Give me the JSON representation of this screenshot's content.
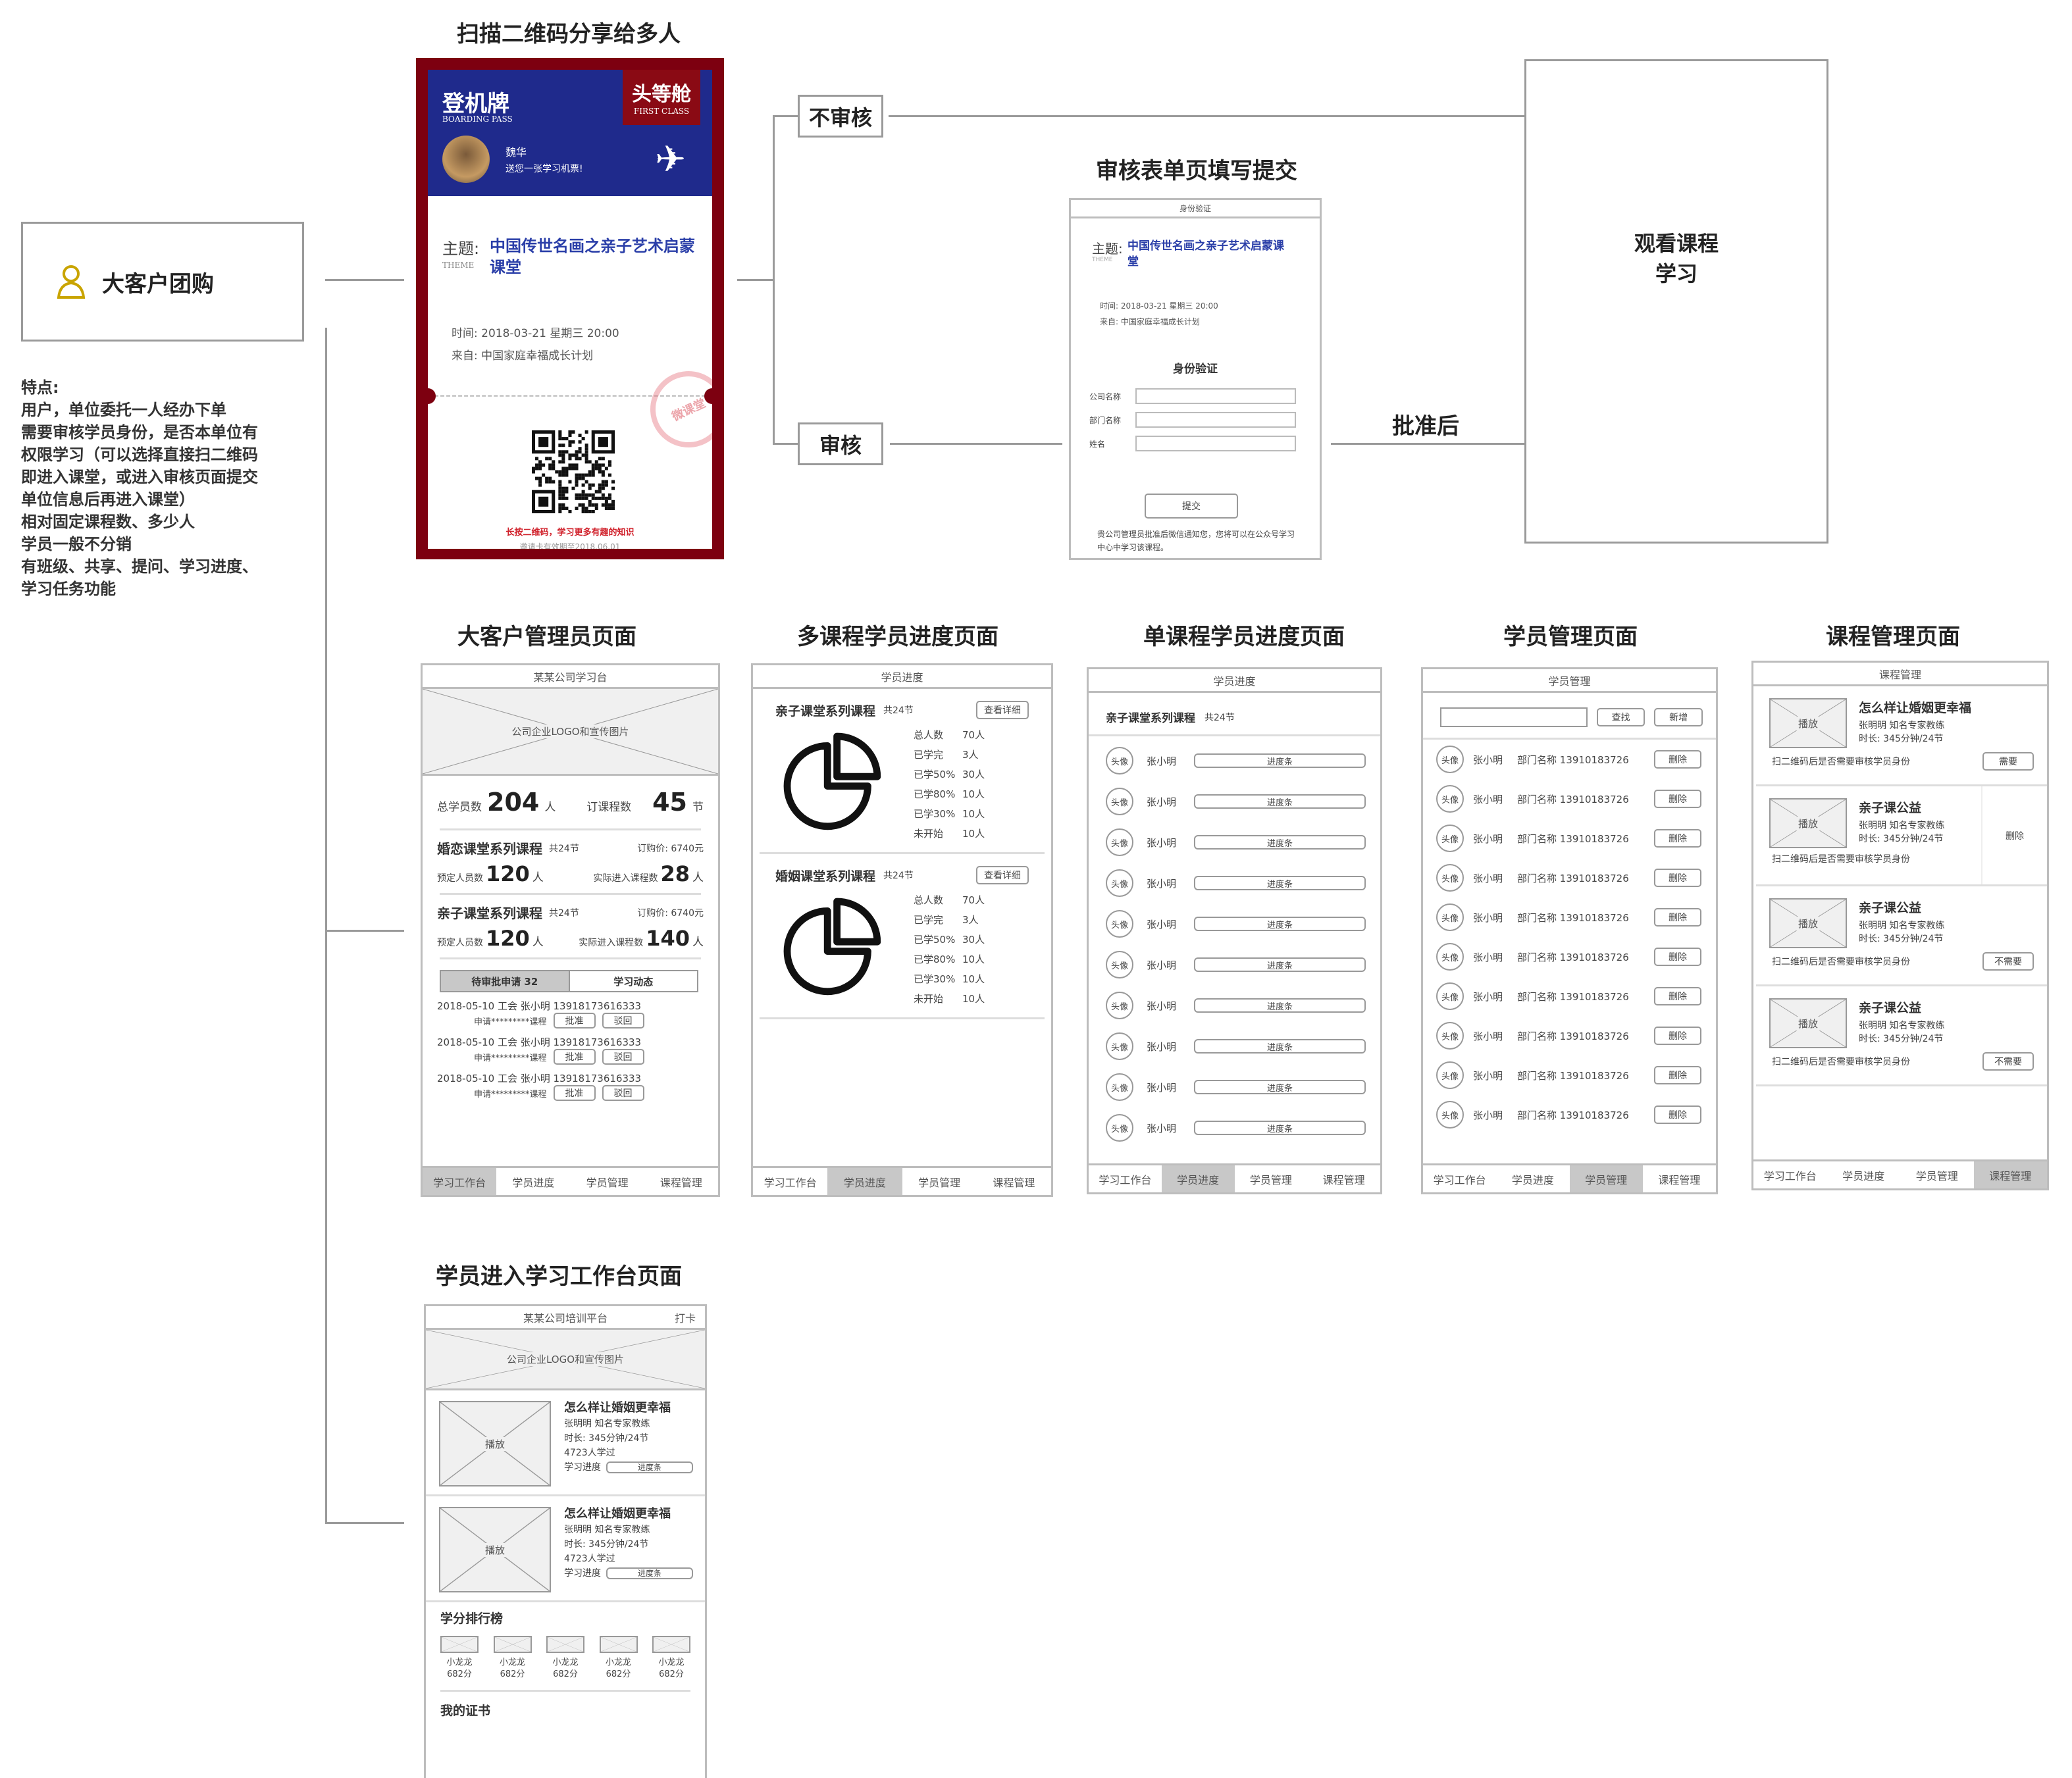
{
  "flow": {
    "share_title": "扫描二维码分享给多人",
    "form_title": "审核表单页填写提交",
    "no_review": "不审核",
    "review": "审核",
    "after_approval": "批准后",
    "watch_line1": "观看课程",
    "watch_line2": "学习"
  },
  "customer": {
    "label": "大客户团购",
    "icon": "user-icon",
    "features": [
      "特点:",
      "用户，单位委托一人经办下单",
      "需要审核学员身份，是否本单位有",
      "权限学习（可以选择直接扫二维码",
      "即进入课堂，或进入审核页面提交",
      "单位信息后再进入课堂）",
      "相对固定课程数、多少人",
      "学员一般不分销",
      "有班级、共享、提问、学习进度、",
      "学习任务功能"
    ]
  },
  "boarding_pass": {
    "title": "登机牌",
    "title_en": "BOARDING PASS",
    "class": "头等舱",
    "class_en": "FIRST CLASS",
    "sender": "魏华",
    "message": "送您一张学习机票!",
    "theme_label": "主题:",
    "theme_en": "THEME",
    "theme": "中国传世名画之亲子艺术启蒙课堂",
    "time_label": "时间:",
    "time": "2018-03-21  星期三  20:00",
    "from_label": "来自:",
    "from": "中国家庭幸福成长计划",
    "stamp": "微课堂",
    "qr_hint": "长按二维码，学习更多有趣的知识",
    "valid": "邀请卡有效期至2018.06.01",
    "colors": {
      "frame": "#7d0010",
      "header": "#1f2a8c",
      "theme": "#2a3ea8"
    }
  },
  "form": {
    "header": "身份验证",
    "theme_label": "主题:",
    "theme_en": "THEME",
    "theme": "中国传世名画之亲子艺术启蒙课堂",
    "time": "时间:  2018-03-21  星期三  20:00",
    "from": "来自:  中国家庭幸福成长计划",
    "section": "身份验证",
    "fields": [
      "公司名称",
      "部门名称",
      "姓名"
    ],
    "submit": "提交",
    "note": "贵公司管理员批准后微信通知您，您将可以在公众号学习中心中学习该课程。"
  },
  "tabs": [
    "学习工作台",
    "学员进度",
    "学员管理",
    "课程管理"
  ],
  "admin_page": {
    "title": "大客户管理员页面",
    "header": "某某公司学习台",
    "banner": "公司企业LOGO和宣传图片",
    "total_label": "总学员数",
    "total": "204",
    "total_unit": "人",
    "courses_label": "订课程数",
    "courses": "45",
    "courses_unit": "节",
    "course_list": [
      {
        "name": "婚恋课堂系列课程",
        "lessons": "共24节",
        "price": "订购价: 6740元",
        "booked_label": "预定人员数",
        "booked": "120",
        "unit": "人",
        "actual_label": "实际进入课程数",
        "actual": "28"
      },
      {
        "name": "亲子课堂系列课程",
        "lessons": "共24节",
        "price": "订购价: 6740元",
        "booked_label": "预定人员数",
        "booked": "120",
        "unit": "人",
        "actual_label": "实际进入课程数",
        "actual": "140"
      }
    ],
    "tab_pending": "待审批申请   32",
    "tab_activity": "学习动态",
    "requests": [
      {
        "line1": "2018-05-10  工会  张小明  13918173616333",
        "line2": "申请*********课程",
        "approve": "批准",
        "reject": "驳回"
      },
      {
        "line1": "2018-05-10  工会  张小明  13918173616333",
        "line2": "申请*********课程",
        "approve": "批准",
        "reject": "驳回"
      },
      {
        "line1": "2018-05-10  工会  张小明  13918173616333",
        "line2": "申请*********课程",
        "approve": "批准",
        "reject": "驳回"
      }
    ],
    "active_tab": 0
  },
  "multi_progress_page": {
    "title": "多课程学员进度页面",
    "header": "学员进度",
    "detail_btn": "查看详细",
    "courses": [
      {
        "name": "亲子课堂系列课程",
        "lessons": "共24节",
        "stats": [
          [
            "总人数",
            "70人"
          ],
          [
            "已学完",
            "3人"
          ],
          [
            "已学50%",
            "30人"
          ],
          [
            "已学80%",
            "10人"
          ],
          [
            "已学30%",
            "10人"
          ],
          [
            "未开始",
            "10人"
          ]
        ]
      },
      {
        "name": "婚姻课堂系列课程",
        "lessons": "共24节",
        "stats": [
          [
            "总人数",
            "70人"
          ],
          [
            "已学完",
            "3人"
          ],
          [
            "已学50%",
            "30人"
          ],
          [
            "已学80%",
            "10人"
          ],
          [
            "已学30%",
            "10人"
          ],
          [
            "未开始",
            "10人"
          ]
        ]
      }
    ],
    "active_tab": 1
  },
  "single_progress_page": {
    "title": "单课程学员进度页面",
    "header": "学员进度",
    "course": "亲子课堂系列课程",
    "lessons": "共24节",
    "avatar": "头像",
    "name": "张小明",
    "bar": "进度条",
    "row_count": 10,
    "active_tab": 1
  },
  "student_page": {
    "title": "学员管理页面",
    "header": "学员管理",
    "search_value": "",
    "search_btn": "查找",
    "add_btn": "新增",
    "avatar": "头像",
    "name": "张小明",
    "info": "部门名称 13910183726",
    "delete": "删除",
    "row_count": 10,
    "active_tab": 2
  },
  "course_page": {
    "title": "课程管理页面",
    "header": "课程管理",
    "play": "播放",
    "review_q": "扫二维码后是否需要审核学员身份",
    "delete": "删除",
    "items": [
      {
        "name": "怎么样让婚姻更幸福",
        "teacher": "张明明   知名专家教练",
        "duration": "时长: 345分钟/24节",
        "toggle": "需要"
      },
      {
        "name": "亲子课公益",
        "teacher": "张明明   知名专家教练",
        "duration": "时长: 345分钟/24节",
        "toggle": ""
      },
      {
        "name": "亲子课公益",
        "teacher": "张明明   知名专家教练",
        "duration": "时长: 345分钟/24节",
        "toggle": "不需要"
      },
      {
        "name": "亲子课公益",
        "teacher": "张明明   知名专家教练",
        "duration": "时长: 345分钟/24节",
        "toggle": "不需要"
      }
    ],
    "active_tab": 3
  },
  "workbench_page": {
    "title": "学员进入学习工作台页面",
    "header": "某某公司培训平台",
    "checkin": "打卡",
    "banner": "公司企业LOGO和宣传图片",
    "play": "播放",
    "courses": [
      {
        "name": "怎么样让婚姻更幸福",
        "teacher": "张明明   知名专家教练",
        "duration": "时长: 345分钟/24节",
        "learners": "4723人学过",
        "progress_label": "学习进度",
        "bar": "进度条"
      },
      {
        "name": "怎么样让婚姻更幸福",
        "teacher": "张明明   知名专家教练",
        "duration": "时长: 345分钟/24节",
        "learners": "4723人学过",
        "progress_label": "学习进度",
        "bar": "进度条"
      }
    ],
    "ranking_title": "学分排行榜",
    "ranking": [
      [
        "小龙龙",
        "682分"
      ],
      [
        "小龙龙",
        "682分"
      ],
      [
        "小龙龙",
        "682分"
      ],
      [
        "小龙龙",
        "682分"
      ],
      [
        "小龙龙",
        "682分"
      ]
    ],
    "cert_title": "我的证书"
  }
}
